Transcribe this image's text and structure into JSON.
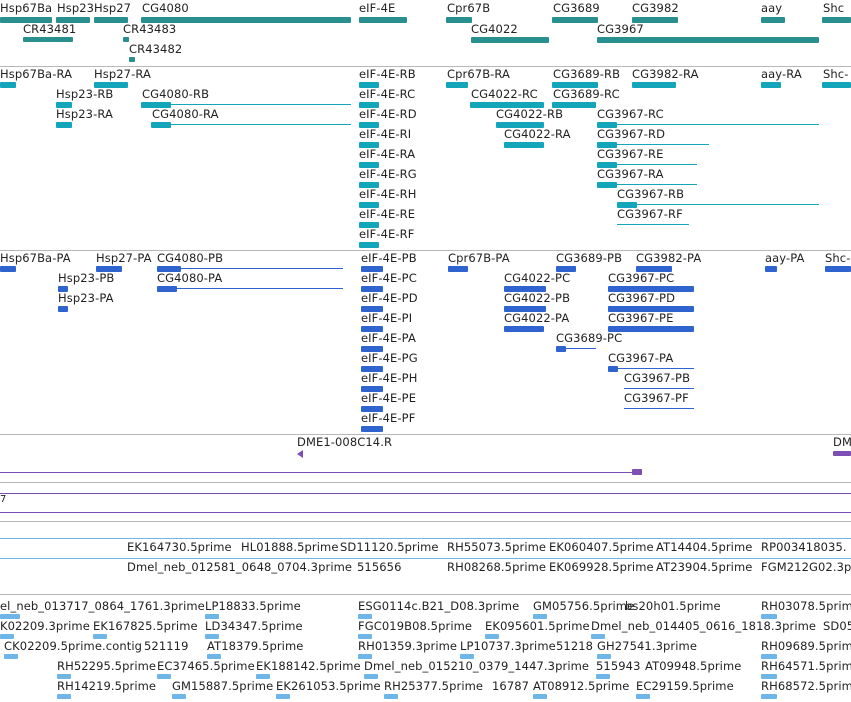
{
  "track1": {
    "labels": [
      "Hsp67Ba",
      "Hsp23",
      "Hsp27",
      "CG4080",
      "eIF-4E",
      "Cpr67B",
      "CG3689",
      "CG3982",
      "aay",
      "Shc",
      "CR43481",
      "CR43483",
      "CR43482",
      "CG4022",
      "CG3967"
    ]
  },
  "track2": {
    "labels": [
      "Hsp67Ba-RA",
      "Hsp27-RA",
      "Hsp23-RB",
      "Hsp23-RA",
      "CG4080-RB",
      "CG4080-RA",
      "eIF-4E-RB",
      "eIF-4E-RC",
      "eIF-4E-RD",
      "eIF-4E-RI",
      "eIF-4E-RA",
      "eIF-4E-RG",
      "eIF-4E-RH",
      "eIF-4E-RE",
      "eIF-4E-RF",
      "Cpr67B-RA",
      "CG4022-RC",
      "CG4022-RB",
      "CG4022-RA",
      "CG3689-RB",
      "CG3689-RC",
      "CG3982-RA",
      "aay-RA",
      "Shc-",
      "CG3967-RC",
      "CG3967-RD",
      "CG3967-RE",
      "CG3967-RA",
      "CG3967-RB",
      "CG3967-RF"
    ]
  },
  "track3": {
    "labels": [
      "Hsp67Ba-PA",
      "Hsp27-PA",
      "CG4080-PB",
      "CG4080-PA",
      "Hsp23-PB",
      "Hsp23-PA",
      "eIF-4E-PB",
      "eIF-4E-PC",
      "eIF-4E-PD",
      "eIF-4E-PI",
      "eIF-4E-PA",
      "eIF-4E-PG",
      "eIF-4E-PH",
      "eIF-4E-PE",
      "eIF-4E-PF",
      "Cpr67B-PA",
      "CG3689-PB",
      "CG3982-PA",
      "aay-PA",
      "Shc-",
      "CG4022-PC",
      "CG4022-PB",
      "CG4022-PA",
      "CG3689-PC",
      "CG3967-PC",
      "CG3967-PD",
      "CG3967-PE",
      "CG3967-PA",
      "CG3967-PB",
      "CG3967-PF"
    ]
  },
  "track4": {
    "labels": [
      "DME1-008C14.R",
      "DM"
    ],
    "edge_label": "7"
  },
  "track5": {
    "labels": [
      "EK164730.5prime",
      "HL01888.5prime",
      "SD11120.5prime",
      "RH55073.5prime",
      "EK060407.5prime",
      "AT14404.5prime",
      "RP003418035.",
      "Dmel_neb_012581_0648_0704.3prime",
      "515656",
      "RH08268.5prime",
      "EK069928.5prime",
      "AT23904.5prime",
      "FGM212G02.3p"
    ]
  },
  "track6": {
    "labels": [
      "el_neb_013717_0864_1761.3prime",
      "LP18833.5prime",
      "ESG0114c.B21_D08.3prime",
      "GM05756.5prime",
      "bs20h01.5prime",
      "RH03078.5prime",
      "K02209.3prime",
      "EK167825.5prime",
      "LD34347.5prime",
      "FGC019B08.5prime",
      "EK095601.5prime",
      "Dmel_neb_014405_0616_1818.3prime",
      "SD05",
      "CK02209.5prime.contig",
      "521119",
      "AT18379.5prime",
      "RH01359.3prime",
      "LP10737.3prime",
      "51218",
      "GH27541.3prime",
      "RH09689.5prime",
      "RH52295.5prime",
      "EC37465.5prime",
      "EK188142.5prime",
      "Dmel_neb_015210_0379_1447.3prime",
      "515943",
      "AT09948.5prime",
      "RH64571.5prime",
      "RH14219.5prime",
      "GM15887.5prime",
      "EK261053.5prime",
      "RH25377.5prime",
      "16787",
      "AT08912.5prime",
      "EC29159.5prime",
      "RH68572.5prime"
    ]
  },
  "colors": {
    "gene": "#2a8f8f",
    "transcript": "#13a6bb",
    "protein": "#2f63d0",
    "clone": "#7d4fb5",
    "est": "#6fb6e8"
  }
}
